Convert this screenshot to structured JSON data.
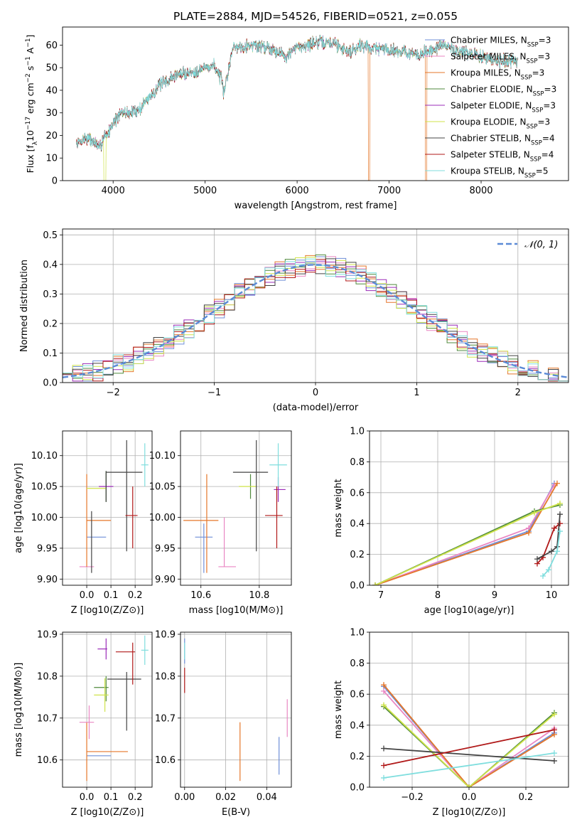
{
  "figure_title": "PLATE=2884, MJD=54526, FIBERID=0521, z=0.055",
  "colors": {
    "chabrier_miles": "#6f8fd8",
    "salpeter_miles": "#e986c3",
    "kroupa_miles": "#e5772a",
    "chabrier_elodie": "#4f8a3c",
    "salpeter_elodie": "#9b2bb8",
    "kroupa_elodie": "#cfe34a",
    "chabrier_stelib": "#444444",
    "salpeter_stelib": "#b01818",
    "kroupa_stelib": "#7fdede",
    "normal": "#5b8ad6"
  },
  "chart_data": [
    {
      "id": "spectrum",
      "type": "line",
      "xlabel": "wavelength [Angstrom, rest frame]",
      "ylabel_parts": [
        "Flux [f",
        "λ",
        "10",
        "−17",
        " erg cm",
        "−2",
        " s",
        "−1",
        " A",
        "−1",
        "]"
      ],
      "xlim": [
        3450,
        8950
      ],
      "ylim": [
        0,
        68
      ],
      "xticks": [
        4000,
        5000,
        6000,
        7000,
        8000
      ],
      "yticks": [
        0,
        10,
        20,
        30,
        40,
        50,
        60
      ],
      "spectrum_range": [
        3600,
        8400
      ],
      "spectrum_anchors": [
        [
          3600,
          16
        ],
        [
          3700,
          19
        ],
        [
          3800,
          17
        ],
        [
          3850,
          14
        ],
        [
          3900,
          20
        ],
        [
          3950,
          21
        ],
        [
          4000,
          26
        ],
        [
          4100,
          30
        ],
        [
          4200,
          30
        ],
        [
          4300,
          32
        ],
        [
          4350,
          35
        ],
        [
          4500,
          42
        ],
        [
          4700,
          47
        ],
        [
          4860,
          48
        ],
        [
          5000,
          50
        ],
        [
          5100,
          51
        ],
        [
          5175,
          45
        ],
        [
          5200,
          38
        ],
        [
          5300,
          59
        ],
        [
          5500,
          60
        ],
        [
          5700,
          59
        ],
        [
          5890,
          55
        ],
        [
          6000,
          59
        ],
        [
          6200,
          61
        ],
        [
          6400,
          61
        ],
        [
          6563,
          57
        ],
        [
          6700,
          60
        ],
        [
          6800,
          59
        ],
        [
          7000,
          58
        ],
        [
          7200,
          57
        ],
        [
          7300,
          55
        ],
        [
          7400,
          57
        ],
        [
          7600,
          60
        ],
        [
          7700,
          58
        ],
        [
          7800,
          57
        ],
        [
          8000,
          55
        ],
        [
          8200,
          53
        ],
        [
          8400,
          53
        ]
      ],
      "drops": [
        {
          "series": "kroupa_elodie",
          "from": 3900,
          "to": 3920
        },
        {
          "series": "kroupa_miles",
          "from": 6775,
          "to": 6790
        },
        {
          "series": "kroupa_miles",
          "from": 7395,
          "to": 7410
        }
      ],
      "legend": "top-right",
      "series": [
        {
          "key": "chabrier_miles",
          "library": "Chabrier MILES",
          "nssp": "3"
        },
        {
          "key": "salpeter_miles",
          "library": "Salpeter MILES",
          "nssp": "3"
        },
        {
          "key": "kroupa_miles",
          "library": "Kroupa MILES",
          "nssp": "3"
        },
        {
          "key": "chabrier_elodie",
          "library": "Chabrier ELODIE",
          "nssp": "3"
        },
        {
          "key": "salpeter_elodie",
          "library": "Salpeter ELODIE",
          "nssp": "3"
        },
        {
          "key": "kroupa_elodie",
          "library": "Kroupa ELODIE",
          "nssp": "3"
        },
        {
          "key": "chabrier_stelib",
          "library": "Chabrier STELIB",
          "nssp": "4"
        },
        {
          "key": "salpeter_stelib",
          "library": "Salpeter STELIB",
          "nssp": "4"
        },
        {
          "key": "kroupa_stelib",
          "library": "Kroupa STELIB",
          "nssp": "5"
        }
      ]
    },
    {
      "id": "residuals",
      "type": "histogram",
      "xlabel": "(data-model)/error",
      "ylabel": "Normed distribution",
      "xlim": [
        -2.5,
        2.5
      ],
      "ylim": [
        0,
        0.52
      ],
      "xticks": [
        -2,
        -1,
        0,
        1,
        2
      ],
      "yticks": [
        0.0,
        0.1,
        0.2,
        0.3,
        0.4,
        0.5
      ],
      "grid": true,
      "bin_width": 0.1,
      "reference_curve": {
        "label": "𝒩(0, 1)",
        "mean": 0,
        "sigma": 1,
        "style": "dashed"
      },
      "legend": "top-right"
    },
    {
      "id": "age_vs_z",
      "type": "errorbar",
      "xlabel": "Z [log10(Z/Z⊙)]",
      "ylabel": "age [log10(age/yr)]",
      "xlim": [
        -0.1,
        0.27
      ],
      "ylim": [
        9.89,
        10.14
      ],
      "xticks": [
        0.0,
        0.1,
        0.2
      ],
      "yticks": [
        9.9,
        9.95,
        10.0,
        10.05,
        10.1
      ],
      "grid": true,
      "points": [
        {
          "key": "chabrier_miles",
          "x": 0.04,
          "xerr": 0.04,
          "y": 9.968,
          "yerr": 0.0
        },
        {
          "key": "salpeter_miles",
          "x": 0.0,
          "xerr": 0.03,
          "y": 9.92,
          "yerr": 0.0
        },
        {
          "key": "kroupa_miles",
          "x": 0.0,
          "xerr": 0.0,
          "y": 9.995,
          "yerr": 0.075
        },
        {
          "key": "kroupa_miles",
          "x": 0.05,
          "xerr": 0.05,
          "y": 9.995,
          "yerr": 0.0
        },
        {
          "key": "chabrier_elodie",
          "x": 0.08,
          "xerr": 0.0,
          "y": 10.05,
          "yerr": 0.025
        },
        {
          "key": "salpeter_elodie",
          "x": 0.08,
          "xerr": 0.03,
          "y": 10.05,
          "yerr": 0.0
        },
        {
          "key": "kroupa_elodie",
          "x": 0.04,
          "xerr": 0.04,
          "y": 10.047,
          "yerr": 0.0
        },
        {
          "key": "chabrier_stelib",
          "x": 0.08,
          "xerr": 0.0,
          "y": 10.05,
          "yerr": 0.025
        },
        {
          "key": "chabrier_stelib",
          "x": 0.155,
          "xerr": 0.075,
          "y": 10.073,
          "yerr": 0.0
        },
        {
          "key": "chabrier_stelib",
          "x": 0.165,
          "xerr": 0.0,
          "y": 10.035,
          "yerr": 0.09
        },
        {
          "key": "chabrier_stelib",
          "x": 0.02,
          "xerr": 0.0,
          "y": 9.96,
          "yerr": 0.05
        },
        {
          "key": "salpeter_stelib",
          "x": 0.19,
          "xerr": 0.0,
          "y": 10.0,
          "yerr": 0.05
        },
        {
          "key": "salpeter_stelib",
          "x": 0.185,
          "xerr": 0.025,
          "y": 10.003,
          "yerr": 0.0
        },
        {
          "key": "kroupa_stelib",
          "x": 0.24,
          "xerr": 0.015,
          "y": 10.085,
          "yerr": 0.035
        }
      ]
    },
    {
      "id": "age_vs_mass",
      "type": "errorbar",
      "xlabel": "mass [log10(M/M⊙)]",
      "ylabel": "",
      "xlim": [
        10.53,
        10.91
      ],
      "ylim": [
        9.89,
        10.14
      ],
      "xticks": [
        10.6,
        10.8
      ],
      "yticks": [
        9.9,
        9.95,
        10.0,
        10.05,
        10.1
      ],
      "grid": true,
      "points": [
        {
          "key": "chabrier_miles",
          "x": 10.61,
          "xerr": 0.03,
          "y": 9.968,
          "yerr": 0.0
        },
        {
          "key": "chabrier_miles",
          "x": 10.61,
          "xerr": 0.0,
          "y": 9.95,
          "yerr": 0.04
        },
        {
          "key": "salpeter_miles",
          "x": 10.69,
          "xerr": 0.03,
          "y": 9.92,
          "yerr": 0.0
        },
        {
          "key": "salpeter_miles",
          "x": 10.68,
          "xerr": 0.0,
          "y": 9.96,
          "yerr": 0.04
        },
        {
          "key": "kroupa_miles",
          "x": 10.62,
          "xerr": 0.0,
          "y": 9.99,
          "yerr": 0.08
        },
        {
          "key": "kroupa_miles",
          "x": 10.6,
          "xerr": 0.06,
          "y": 9.995,
          "yerr": 0.0
        },
        {
          "key": "chabrier_elodie",
          "x": 10.77,
          "xerr": 0.0,
          "y": 10.05,
          "yerr": 0.02
        },
        {
          "key": "salpeter_elodie",
          "x": 10.87,
          "xerr": 0.02,
          "y": 10.045,
          "yerr": 0.0
        },
        {
          "key": "salpeter_elodie",
          "x": 10.865,
          "xerr": 0.0,
          "y": 10.045,
          "yerr": 0.02
        },
        {
          "key": "kroupa_elodie",
          "x": 10.76,
          "xerr": 0.03,
          "y": 10.05,
          "yerr": 0.0
        },
        {
          "key": "chabrier_stelib",
          "x": 10.79,
          "xerr": 0.0,
          "y": 10.035,
          "yerr": 0.09
        },
        {
          "key": "chabrier_stelib",
          "x": 10.77,
          "xerr": 0.06,
          "y": 10.073,
          "yerr": 0.0
        },
        {
          "key": "salpeter_stelib",
          "x": 10.86,
          "xerr": 0.0,
          "y": 10.0,
          "yerr": 0.05
        },
        {
          "key": "salpeter_stelib",
          "x": 10.85,
          "xerr": 0.03,
          "y": 10.003,
          "yerr": 0.0
        },
        {
          "key": "kroupa_stelib",
          "x": 10.865,
          "xerr": 0.03,
          "y": 10.085,
          "yerr": 0.035
        }
      ]
    },
    {
      "id": "weight_vs_age",
      "type": "line",
      "xlabel": "age [log10(age/yr)]",
      "ylabel": "mass weight",
      "xlim": [
        6.8,
        10.3
      ],
      "ylim": [
        0,
        1
      ],
      "xticks": [
        7,
        8,
        9,
        10
      ],
      "yticks": [
        0.0,
        0.2,
        0.4,
        0.6,
        0.8,
        1.0
      ],
      "grid": true,
      "series": [
        {
          "key": "chabrier_miles",
          "x": [
            6.9,
            9.6,
            10.05
          ],
          "y": [
            0.0,
            0.35,
            0.66
          ]
        },
        {
          "key": "salpeter_miles",
          "x": [
            6.9,
            9.6,
            10.05
          ],
          "y": [
            0.0,
            0.37,
            0.65
          ]
        },
        {
          "key": "kroupa_miles",
          "x": [
            6.9,
            9.6,
            10.1
          ],
          "y": [
            0.0,
            0.34,
            0.66
          ]
        },
        {
          "key": "chabrier_elodie",
          "x": [
            6.9,
            9.7,
            10.15
          ],
          "y": [
            0.0,
            0.48,
            0.52
          ]
        },
        {
          "key": "kroupa_elodie",
          "x": [
            6.9,
            9.7,
            10.15
          ],
          "y": [
            0.0,
            0.47,
            0.53
          ]
        },
        {
          "key": "salpeter_stelib",
          "x": [
            9.75,
            9.85,
            10.05,
            10.15
          ],
          "y": [
            0.14,
            0.18,
            0.37,
            0.4
          ]
        },
        {
          "key": "chabrier_stelib",
          "x": [
            9.75,
            10.0,
            10.1,
            10.15
          ],
          "y": [
            0.17,
            0.22,
            0.25,
            0.46
          ]
        },
        {
          "key": "kroupa_stelib",
          "x": [
            9.85,
            9.95,
            10.1,
            10.15
          ],
          "y": [
            0.06,
            0.1,
            0.22,
            0.35
          ]
        }
      ]
    },
    {
      "id": "mass_vs_z",
      "type": "errorbar",
      "xlabel": "Z [log10(Z/Z⊙)]",
      "ylabel": "mass [log10(M/M⊙)]",
      "xlim": [
        -0.1,
        0.27
      ],
      "ylim": [
        10.535,
        10.905
      ],
      "xticks": [
        0.0,
        0.1,
        0.2
      ],
      "yticks": [
        10.6,
        10.7,
        10.8,
        10.9
      ],
      "grid": true,
      "points": [
        {
          "key": "chabrier_miles",
          "x": 0.05,
          "xerr": 0.05,
          "y": 10.61,
          "yerr": 0.0
        },
        {
          "key": "kroupa_miles",
          "x": 0.0,
          "xerr": 0.0,
          "y": 10.62,
          "yerr": 0.07
        },
        {
          "key": "kroupa_miles",
          "x": 0.085,
          "xerr": 0.085,
          "y": 10.62,
          "yerr": 0.0
        },
        {
          "key": "salpeter_miles",
          "x": 0.0,
          "xerr": 0.03,
          "y": 10.69,
          "yerr": 0.0
        },
        {
          "key": "salpeter_miles",
          "x": 0.01,
          "xerr": 0.0,
          "y": 10.69,
          "yerr": 0.04
        },
        {
          "key": "chabrier_elodie",
          "x": 0.08,
          "xerr": 0.0,
          "y": 10.77,
          "yerr": 0.03
        },
        {
          "key": "chabrier_elodie",
          "x": 0.06,
          "xerr": 0.03,
          "y": 10.773,
          "yerr": 0.0
        },
        {
          "key": "kroupa_elodie",
          "x": 0.06,
          "xerr": 0.03,
          "y": 10.755,
          "yerr": 0.0
        },
        {
          "key": "kroupa_elodie",
          "x": 0.075,
          "xerr": 0.0,
          "y": 10.755,
          "yerr": 0.04
        },
        {
          "key": "salpeter_elodie",
          "x": 0.065,
          "xerr": 0.02,
          "y": 10.865,
          "yerr": 0.0
        },
        {
          "key": "salpeter_elodie",
          "x": 0.08,
          "xerr": 0.0,
          "y": 10.865,
          "yerr": 0.025
        },
        {
          "key": "chabrier_stelib",
          "x": 0.165,
          "xerr": 0.0,
          "y": 10.74,
          "yerr": 0.07
        },
        {
          "key": "chabrier_stelib",
          "x": 0.155,
          "xerr": 0.07,
          "y": 10.793,
          "yerr": 0.0
        },
        {
          "key": "salpeter_stelib",
          "x": 0.19,
          "xerr": 0.0,
          "y": 10.83,
          "yerr": 0.05
        },
        {
          "key": "salpeter_stelib",
          "x": 0.16,
          "xerr": 0.04,
          "y": 10.858,
          "yerr": 0.0
        },
        {
          "key": "kroupa_stelib",
          "x": 0.24,
          "xerr": 0.015,
          "y": 10.862,
          "yerr": 0.035
        }
      ]
    },
    {
      "id": "mass_vs_ebv",
      "type": "errorbar",
      "xlabel": "E(B-V)",
      "ylabel": "",
      "xlim": [
        -0.002,
        0.052
      ],
      "ylim": [
        10.535,
        10.905
      ],
      "xticks": [
        0.0,
        0.02,
        0.04
      ],
      "yticks": [
        10.6,
        10.7,
        10.8,
        10.9
      ],
      "grid": true,
      "points": [
        {
          "key": "chabrier_miles",
          "x": 0.0,
          "xerr": 0.0,
          "y": 10.86,
          "yerr": 0.03
        },
        {
          "key": "salpeter_stelib",
          "x": 0.0,
          "xerr": 0.0,
          "y": 10.79,
          "yerr": 0.03
        },
        {
          "key": "kroupa_stelib",
          "x": 0.0,
          "xerr": 0.0,
          "y": 10.86,
          "yerr": 0.02
        },
        {
          "key": "kroupa_miles",
          "x": 0.027,
          "xerr": 0.0,
          "y": 10.62,
          "yerr": 0.07
        },
        {
          "key": "chabrier_miles",
          "x": 0.046,
          "xerr": 0.0,
          "y": 10.61,
          "yerr": 0.045
        },
        {
          "key": "salpeter_miles",
          "x": 0.05,
          "xerr": 0.0,
          "y": 10.7,
          "yerr": 0.045
        }
      ]
    },
    {
      "id": "weight_vs_z",
      "type": "line",
      "xlabel": "Z [log10(Z/Z⊙)]",
      "ylabel": "mass weight",
      "xlim": [
        -0.35,
        0.35
      ],
      "ylim": [
        0,
        1
      ],
      "xticks": [
        -0.2,
        0.0,
        0.2
      ],
      "yticks": [
        0.0,
        0.2,
        0.4,
        0.6,
        0.8,
        1.0
      ],
      "grid": true,
      "series": [
        {
          "key": "chabrier_miles",
          "x": [
            -0.3,
            0.0,
            0.3
          ],
          "y": [
            0.65,
            0.0,
            0.35
          ]
        },
        {
          "key": "salpeter_miles",
          "x": [
            -0.3,
            0.0,
            0.3
          ],
          "y": [
            0.62,
            0.0,
            0.38
          ]
        },
        {
          "key": "kroupa_miles",
          "x": [
            -0.3,
            0.0,
            0.3
          ],
          "y": [
            0.66,
            0.0,
            0.34
          ]
        },
        {
          "key": "chabrier_elodie",
          "x": [
            -0.3,
            0.0,
            0.3
          ],
          "y": [
            0.52,
            0.0,
            0.48
          ]
        },
        {
          "key": "kroupa_elodie",
          "x": [
            -0.3,
            0.0,
            0.3
          ],
          "y": [
            0.53,
            0.0,
            0.47
          ]
        },
        {
          "key": "chabrier_stelib",
          "x": [
            -0.3,
            0.3
          ],
          "y": [
            0.25,
            0.17
          ]
        },
        {
          "key": "salpeter_stelib",
          "x": [
            -0.3,
            0.3
          ],
          "y": [
            0.14,
            0.37
          ]
        },
        {
          "key": "kroupa_stelib",
          "x": [
            -0.3,
            0.3
          ],
          "y": [
            0.06,
            0.22
          ]
        }
      ]
    }
  ]
}
